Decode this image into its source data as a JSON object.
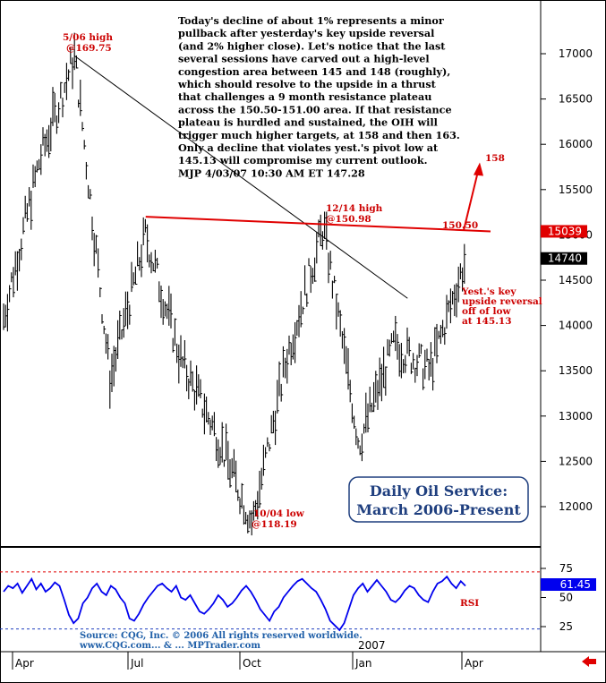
{
  "chart_data": [
    {
      "type": "ohlc",
      "title": "Daily Oil Service:",
      "subtitle": "March 2006-Present",
      "ylim": [
        11700,
        17450
      ],
      "y_ticks": [
        "17000",
        "16500",
        "16000",
        "15500",
        "15000",
        "14500",
        "14000",
        "13500",
        "13000",
        "12500",
        "12000"
      ],
      "x_ticks": [
        "Apr",
        "Jul",
        "Oct",
        "Jan",
        "Apr"
      ],
      "year_label": "2007",
      "commentary": [
        "Today's decline of about 1% represents a minor",
        "pullback after yesterday's key upside reversal",
        "(and 2% higher close). Let's notice that the last",
        "several sessions have carved out a high-level",
        "congestion area between 145 and 148 (roughly),",
        "which should resolve to the upside in a thrust",
        "that challenges a 9 month resistance plateau",
        "across the 150.50-151.00 area. If that resistance",
        "plateau is hurdled and sustained, the OIH will",
        "trigger much higher targets, at 158 and then 163.",
        "Only a decline that violates yest.'s pivot low at",
        "145.13 will compromise my current outlook.",
        "MJP  4/03/07  10:30 AM ET  147.28"
      ],
      "annotations": {
        "high_may": [
          "5/06 high",
          "@169.75"
        ],
        "high_dec": [
          "12/14 high",
          "@150.98"
        ],
        "low_oct": [
          "10/04 low",
          "@118.19"
        ],
        "reversal": [
          "Yest.'s key",
          "upside reversal",
          "off of low",
          "at 145.13"
        ],
        "resistance": "150.50",
        "target": "158"
      },
      "price_boxes": [
        {
          "label": "15039",
          "value": 15039,
          "color": "#e00000"
        },
        {
          "label": "14740",
          "value": 14740,
          "color": "#000000"
        }
      ],
      "anchor_points": [
        {
          "x": "Mar",
          "y": 14100
        },
        {
          "x": "Apr",
          "y": 15800
        },
        {
          "x": "May",
          "y": 16975
        },
        {
          "x": "Jun",
          "y": 13400
        },
        {
          "x": "Jul",
          "y": 15000
        },
        {
          "x": "Aug",
          "y": 13600
        },
        {
          "x": "Sep",
          "y": 12800
        },
        {
          "x": "Oct",
          "y": 11819
        },
        {
          "x": "Nov",
          "y": 13700
        },
        {
          "x": "Dec",
          "y": 15098
        },
        {
          "x": "Jan",
          "y": 12700
        },
        {
          "x": "Feb",
          "y": 13800
        },
        {
          "x": "Mar",
          "y": 13500
        },
        {
          "x": "Apr",
          "y": 14728
        }
      ],
      "downtrend_line": [
        {
          "x": "May",
          "y": 16975
        },
        {
          "x": "Mar",
          "y": 14300
        }
      ],
      "resistance_line": [
        {
          "x": "Jul",
          "y": 15200
        },
        {
          "x": "Apr",
          "y": 15039
        }
      ],
      "target_arrow": [
        {
          "x": "Apr",
          "y": 15050
        },
        {
          "x": "Apr",
          "y": 15800
        }
      ]
    },
    {
      "type": "line",
      "name": "RSI",
      "ylim": [
        15,
        85
      ],
      "y_ticks": [
        "75",
        "50",
        "25"
      ],
      "reference_lines": [
        72,
        23
      ],
      "current": "61.45",
      "values": [
        55,
        60,
        58,
        62,
        54,
        60,
        66,
        57,
        62,
        55,
        58,
        63,
        60,
        48,
        35,
        28,
        32,
        45,
        50,
        58,
        62,
        55,
        52,
        60,
        57,
        50,
        45,
        32,
        30,
        36,
        44,
        50,
        55,
        60,
        62,
        58,
        55,
        60,
        50,
        48,
        52,
        45,
        38,
        36,
        40,
        45,
        52,
        48,
        42,
        45,
        50,
        56,
        60,
        55,
        48,
        40,
        35,
        30,
        38,
        42,
        50,
        55,
        60,
        64,
        66,
        62,
        58,
        55,
        48,
        40,
        30,
        26,
        22,
        28,
        40,
        52,
        58,
        62,
        55,
        60,
        65,
        60,
        55,
        48,
        46,
        50,
        56,
        60,
        58,
        52,
        48,
        46,
        55,
        62,
        64,
        68,
        62,
        58,
        64,
        60
      ]
    }
  ],
  "source_lines": [
    "Source: CQG, Inc. © 2006 All rights reserved worldwide.",
    "www.CQG.com... & ... MPTrader.com"
  ]
}
